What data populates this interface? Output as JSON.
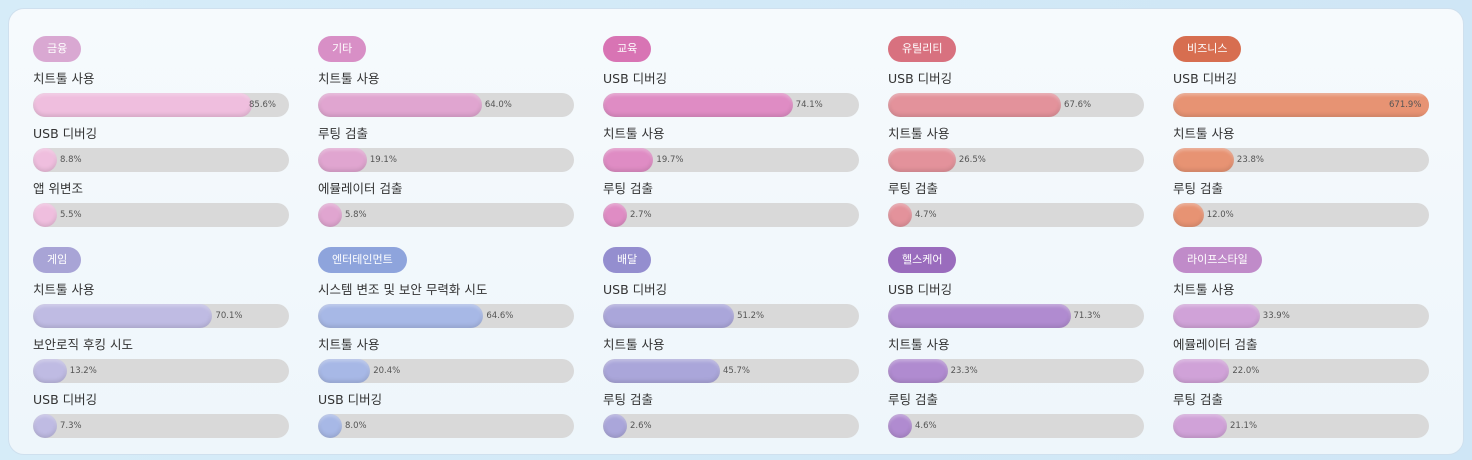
{
  "chart_data": [
    {
      "type": "bar",
      "orientation": "horizontal",
      "title": "금융",
      "title_color": "#d9a8d2",
      "color": "#efbede",
      "xlim": [
        0,
        100
      ],
      "categories": [
        "치트툴 사용",
        "USB 디버깅",
        "앱 위변조"
      ],
      "values": [
        85.6,
        8.8,
        5.5
      ],
      "value_labels": [
        "85.6%",
        "8.8%",
        "5.5%"
      ]
    },
    {
      "type": "bar",
      "orientation": "horizontal",
      "title": "기타",
      "title_color": "#d88fc6",
      "color": "#e0a5d0",
      "xlim": [
        0,
        100
      ],
      "categories": [
        "치트툴 사용",
        "루팅 검출",
        "에뮬레이터 검출"
      ],
      "values": [
        64.0,
        19.1,
        5.8
      ],
      "value_labels": [
        "64.0%",
        "19.1%",
        "5.8%"
      ]
    },
    {
      "type": "bar",
      "orientation": "horizontal",
      "title": "교육",
      "title_color": "#d874b4",
      "color": "#df8cc4",
      "xlim": [
        0,
        100
      ],
      "categories": [
        "USB 디버깅",
        "치트툴 사용",
        "루팅 검출"
      ],
      "values": [
        74.1,
        19.7,
        2.7
      ],
      "value_labels": [
        "74.1%",
        "19.7%",
        "2.7%"
      ]
    },
    {
      "type": "bar",
      "orientation": "horizontal",
      "title": "유틸리티",
      "title_color": "#d8717f",
      "color": "#e3929b",
      "xlim": [
        0,
        100
      ],
      "categories": [
        "USB 디버깅",
        "치트툴 사용",
        "루팅 검출"
      ],
      "values": [
        67.6,
        26.5,
        4.7
      ],
      "value_labels": [
        "67.6%",
        "26.5%",
        "4.7%"
      ]
    },
    {
      "type": "bar",
      "orientation": "horizontal",
      "title": "비즈니스",
      "title_color": "#d76e50",
      "color": "#e79373",
      "xlim": [
        0,
        100
      ],
      "categories": [
        "USB 디버깅",
        "치트툴 사용",
        "루팅 검출"
      ],
      "values": [
        671.9,
        23.8,
        12.0
      ],
      "value_labels": [
        "671.9%",
        "23.8%",
        "12.0%"
      ]
    },
    {
      "type": "bar",
      "orientation": "horizontal",
      "title": "게임",
      "title_color": "#a8a4d6",
      "color": "#bfbbe3",
      "xlim": [
        0,
        100
      ],
      "categories": [
        "치트툴 사용",
        "보안로직 후킹 시도",
        "USB 디버깅"
      ],
      "values": [
        70.1,
        13.2,
        7.3
      ],
      "value_labels": [
        "70.1%",
        "13.2%",
        "7.3%"
      ]
    },
    {
      "type": "bar",
      "orientation": "horizontal",
      "title": "엔터테인먼트",
      "title_color": "#8ea4dc",
      "color": "#a7b8e6",
      "xlim": [
        0,
        100
      ],
      "categories": [
        "시스템 변조 및 보안 무력화 시도",
        "치트툴 사용",
        "USB 디버깅"
      ],
      "values": [
        64.6,
        20.4,
        8.0
      ],
      "value_labels": [
        "64.6%",
        "20.4%",
        "8.0%"
      ]
    },
    {
      "type": "bar",
      "orientation": "horizontal",
      "title": "배달",
      "title_color": "#948ecf",
      "color": "#aaa6da",
      "xlim": [
        0,
        100
      ],
      "categories": [
        "USB 디버깅",
        "치트툴 사용",
        "루팅 검출"
      ],
      "values": [
        51.2,
        45.7,
        2.6
      ],
      "value_labels": [
        "51.2%",
        "45.7%",
        "2.6%"
      ]
    },
    {
      "type": "bar",
      "orientation": "horizontal",
      "title": "헬스케어",
      "title_color": "#9a6cbd",
      "color": "#b08bd0",
      "xlim": [
        0,
        100
      ],
      "categories": [
        "USB 디버깅",
        "치트툴 사용",
        "루팅 검출"
      ],
      "values": [
        71.3,
        23.3,
        4.6
      ],
      "value_labels": [
        "71.3%",
        "23.3%",
        "4.6%"
      ]
    },
    {
      "type": "bar",
      "orientation": "horizontal",
      "title": "라이프스타일",
      "title_color": "#c08bc9",
      "color": "#d0a2d8",
      "xlim": [
        0,
        100
      ],
      "categories": [
        "치트툴 사용",
        "에뮬레이터 검출",
        "루팅 검출"
      ],
      "values": [
        33.9,
        22.0,
        21.1
      ],
      "value_labels": [
        "33.9%",
        "22.0%",
        "21.1%"
      ]
    }
  ]
}
